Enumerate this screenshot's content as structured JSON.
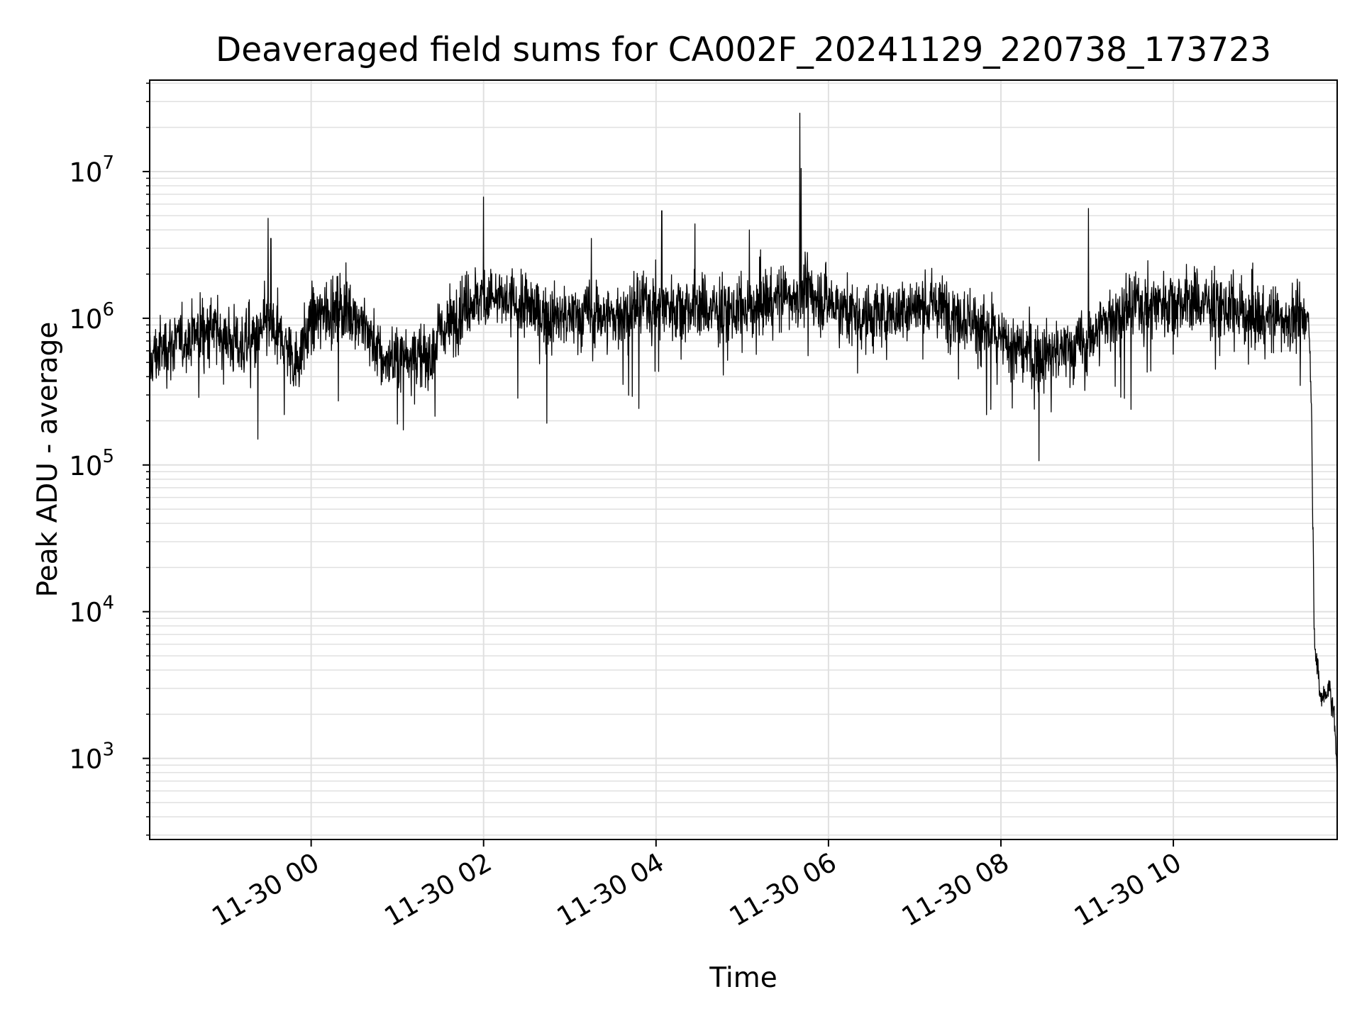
{
  "chart_data": {
    "type": "line",
    "title": "Deaveraged field sums for CA002F_20241129_220738_173723",
    "xlabel": "Time",
    "ylabel": "Peak ADU - average",
    "yscale": "log",
    "grid": true,
    "grid_minor": true,
    "line_color": "#000000",
    "grid_color": "#e0e0e0",
    "xlim": [
      "2024-11-29 22:07:38",
      "2024-11-30 11:54:00"
    ],
    "ylim": [
      280,
      42000000
    ],
    "x_ticks": [
      {
        "value": "2024-11-30 00:00",
        "label": "11-30 00"
      },
      {
        "value": "2024-11-30 02:00",
        "label": "11-30 02"
      },
      {
        "value": "2024-11-30 04:00",
        "label": "11-30 04"
      },
      {
        "value": "2024-11-30 06:00",
        "label": "11-30 06"
      },
      {
        "value": "2024-11-30 08:00",
        "label": "11-30 08"
      },
      {
        "value": "2024-11-30 10:00",
        "label": "11-30 10"
      }
    ],
    "y_ticks": [
      {
        "value": 1000,
        "base": "10",
        "exp": "3"
      },
      {
        "value": 10000,
        "base": "10",
        "exp": "4"
      },
      {
        "value": 100000,
        "base": "10",
        "exp": "5"
      },
      {
        "value": 1000000,
        "base": "10",
        "exp": "6"
      },
      {
        "value": 10000000,
        "base": "10",
        "exp": "7"
      }
    ],
    "series": [
      {
        "x": [
          "2024-11-29 22:07",
          "2024-11-29 22:10",
          "2024-11-29 22:20",
          "2024-11-29 22:30",
          "2024-11-29 22:40",
          "2024-11-29 22:50",
          "2024-11-29 23:00",
          "2024-11-29 23:10",
          "2024-11-29 23:20",
          "2024-11-29 23:30",
          "2024-11-29 23:40",
          "2024-11-29 23:50",
          "2024-11-30 00:00",
          "2024-11-30 00:10",
          "2024-11-30 00:20",
          "2024-11-30 00:30",
          "2024-11-30 00:40",
          "2024-11-30 00:50",
          "2024-11-30 01:00",
          "2024-11-30 01:10",
          "2024-11-30 01:20",
          "2024-11-30 01:30",
          "2024-11-30 01:40",
          "2024-11-30 01:50",
          "2024-11-30 02:00",
          "2024-11-30 02:15",
          "2024-11-30 02:30",
          "2024-11-30 02:45",
          "2024-11-30 03:00",
          "2024-11-30 03:15",
          "2024-11-30 03:30",
          "2024-11-30 03:45",
          "2024-11-30 04:00",
          "2024-11-30 04:15",
          "2024-11-30 04:30",
          "2024-11-30 04:45",
          "2024-11-30 05:00",
          "2024-11-30 05:15",
          "2024-11-30 05:30",
          "2024-11-30 05:45",
          "2024-11-30 06:00",
          "2024-11-30 06:15",
          "2024-11-30 06:30",
          "2024-11-30 06:45",
          "2024-11-30 07:00",
          "2024-11-30 07:15",
          "2024-11-30 07:30",
          "2024-11-30 07:45",
          "2024-11-30 08:00",
          "2024-11-30 08:15",
          "2024-11-30 08:30",
          "2024-11-30 08:45",
          "2024-11-30 09:00",
          "2024-11-30 09:15",
          "2024-11-30 09:30",
          "2024-11-30 09:45",
          "2024-11-30 10:00",
          "2024-11-30 10:15",
          "2024-11-30 10:30",
          "2024-11-30 10:45",
          "2024-11-30 11:00",
          "2024-11-30 11:15",
          "2024-11-30 11:25",
          "2024-11-30 11:30",
          "2024-11-30 11:34",
          "2024-11-30 11:36",
          "2024-11-30 11:38",
          "2024-11-30 11:40",
          "2024-11-30 11:43",
          "2024-11-30 11:46",
          "2024-11-30 11:49",
          "2024-11-30 11:52",
          "2024-11-30 11:54"
        ],
        "y": [
          450000,
          550000,
          650000,
          700000,
          800000,
          850000,
          750000,
          650000,
          700000,
          900000,
          700000,
          500000,
          950000,
          1100000,
          1200000,
          1100000,
          800000,
          500000,
          550000,
          600000,
          500000,
          800000,
          1000000,
          1300000,
          1400000,
          1300000,
          1200000,
          1000000,
          1000000,
          1100000,
          1000000,
          1200000,
          1300000,
          1200000,
          1200000,
          1100000,
          1100000,
          1300000,
          1400000,
          1500000,
          1300000,
          1100000,
          1000000,
          1100000,
          1200000,
          1200000,
          1100000,
          900000,
          700000,
          600000,
          550000,
          600000,
          700000,
          1000000,
          1200000,
          1300000,
          1300000,
          1300000,
          1200000,
          1100000,
          1000000,
          1000000,
          1000000,
          900000,
          1100000,
          300000,
          8000,
          4000,
          2500,
          2800,
          3000,
          2000,
          700
        ],
        "noise": 1.1
      }
    ],
    "spikes": [
      {
        "x": "2024-11-29 23:30",
        "y": 4800000
      },
      {
        "x": "2024-11-29 23:32",
        "y": 3500000
      },
      {
        "x": "2024-11-29 23:23",
        "y": 150000
      },
      {
        "x": "2024-11-30 02:00",
        "y": 6700000
      },
      {
        "x": "2024-11-30 04:04",
        "y": 5400000
      },
      {
        "x": "2024-11-30 04:27",
        "y": 4400000
      },
      {
        "x": "2024-11-30 05:05",
        "y": 4000000
      },
      {
        "x": "2024-11-30 05:40",
        "y": 25000000
      },
      {
        "x": "2024-11-30 05:41",
        "y": 10500000
      },
      {
        "x": "2024-11-30 01:00",
        "y": 190000
      },
      {
        "x": "2024-11-30 07:50",
        "y": 220000
      },
      {
        "x": "2024-11-30 08:35",
        "y": 230000
      },
      {
        "x": "2024-11-30 09:01",
        "y": 5600000
      },
      {
        "x": "2024-11-30 03:15",
        "y": 3500000
      }
    ]
  }
}
